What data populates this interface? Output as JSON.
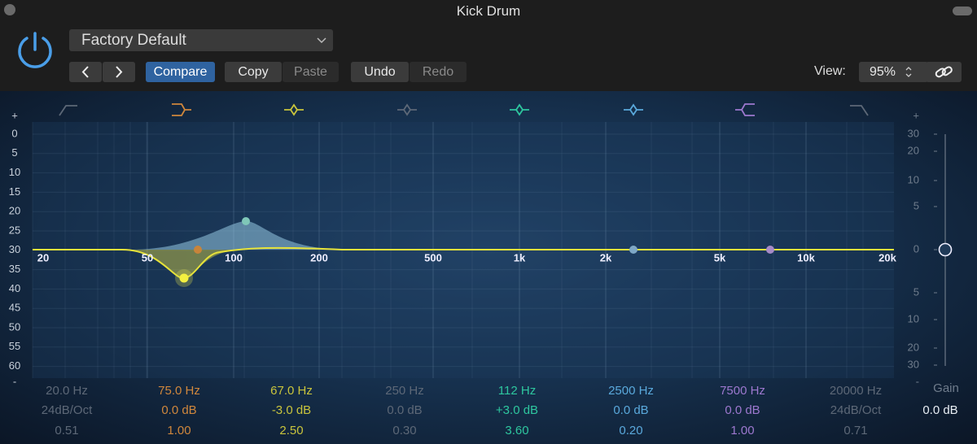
{
  "window": {
    "title": "Kick Drum"
  },
  "toolbar": {
    "preset": "Factory Default",
    "compare": "Compare",
    "copy": "Copy",
    "paste": "Paste",
    "undo": "Undo",
    "redo": "Redo",
    "view_label": "View:",
    "view_value": "95%"
  },
  "eq": {
    "left_scale": [
      "+",
      "0",
      "5",
      "10",
      "15",
      "20",
      "25",
      "30",
      "35",
      "40",
      "45",
      "50",
      "55",
      "60",
      "-"
    ],
    "freq_labels": [
      "20",
      "50",
      "100",
      "200",
      "500",
      "1k",
      "2k",
      "5k",
      "10k",
      "20k"
    ],
    "right_scale": [
      "+",
      "30",
      "20",
      "10",
      "5",
      "0",
      "5",
      "10",
      "20",
      "30",
      "-"
    ],
    "bands": [
      {
        "freq": "20.0 Hz",
        "gain": "24dB/Oct",
        "q": "0.51",
        "color": "#5d6877"
      },
      {
        "freq": "75.0 Hz",
        "gain": "0.0 dB",
        "q": "1.00",
        "color": "#d0873c"
      },
      {
        "freq": "67.0 Hz",
        "gain": "-3.0 dB",
        "q": "2.50",
        "color": "#c9c43c"
      },
      {
        "freq": "250 Hz",
        "gain": "0.0 dB",
        "q": "0.30",
        "color": "#5d6877"
      },
      {
        "freq": "112 Hz",
        "gain": "+3.0 dB",
        "q": "3.60",
        "color": "#2ec79f"
      },
      {
        "freq": "2500 Hz",
        "gain": "0.0 dB",
        "q": "0.20",
        "color": "#5aa9dc"
      },
      {
        "freq": "7500 Hz",
        "gain": "0.0 dB",
        "q": "1.00",
        "color": "#9d78cf"
      },
      {
        "freq": "20000 Hz",
        "gain": "24dB/Oct",
        "q": "0.71",
        "color": "#5d6877"
      }
    ],
    "gain_label": "Gain",
    "gain_value": "0.0 dB"
  }
}
